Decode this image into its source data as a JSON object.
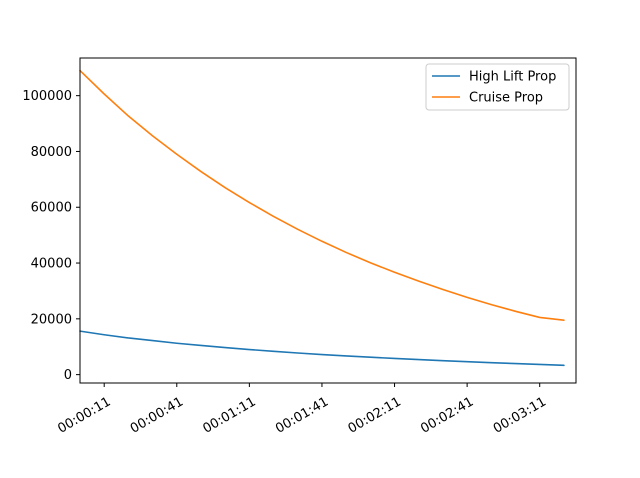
{
  "chart_data": {
    "type": "line",
    "title": "",
    "xlabel": "",
    "ylabel": "",
    "x_unit": "seconds",
    "xlim_seconds": [
      1,
      206
    ],
    "ylim": [
      -3000,
      113500
    ],
    "xticks": [
      {
        "value": 11,
        "label": "00:00:11"
      },
      {
        "value": 41,
        "label": "00:00:41"
      },
      {
        "value": 71,
        "label": "00:01:11"
      },
      {
        "value": 101,
        "label": "00:01:41"
      },
      {
        "value": 131,
        "label": "00:02:11"
      },
      {
        "value": 161,
        "label": "00:02:41"
      },
      {
        "value": 191,
        "label": "00:03:11"
      }
    ],
    "yticks": [
      0,
      20000,
      40000,
      60000,
      80000,
      100000
    ],
    "yticklabels": [
      "0",
      "20000",
      "40000",
      "60000",
      "80000",
      "100000"
    ],
    "grid": false,
    "legend_position": "top-right",
    "x": [
      1,
      11,
      21,
      31,
      41,
      51,
      61,
      71,
      81,
      91,
      101,
      111,
      121,
      131,
      141,
      151,
      161,
      171,
      181,
      191,
      201
    ],
    "series": [
      {
        "name": "High Lift Prop",
        "color": "#1f77b4",
        "values": [
          15600,
          14300,
          13150,
          12200,
          11250,
          10450,
          9700,
          9000,
          8350,
          7750,
          7200,
          6700,
          6250,
          5800,
          5400,
          5000,
          4650,
          4300,
          3950,
          3650,
          3350
        ]
      },
      {
        "name": "Cruise Prop",
        "color": "#ff7f0e",
        "values": [
          109000,
          100600,
          92700,
          85600,
          79000,
          72800,
          67000,
          61700,
          56700,
          52100,
          47800,
          43800,
          40100,
          36700,
          33500,
          30500,
          27700,
          25100,
          22700,
          20500,
          19500
        ]
      }
    ]
  }
}
